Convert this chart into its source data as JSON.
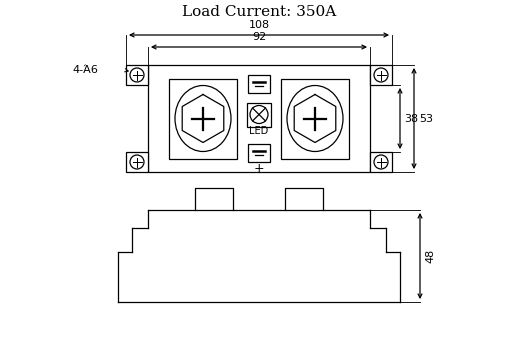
{
  "title": "Load Current: 350A",
  "bg_color": "#ffffff",
  "line_color": "#000000",
  "title_fontsize": 11,
  "dim_fontsize": 8,
  "label_fontsize": 7,
  "dim_108": "108",
  "dim_92": "92",
  "dim_53": "53",
  "dim_38": "38",
  "dim_48": "48",
  "dim_hole": "4-Ά6"
}
